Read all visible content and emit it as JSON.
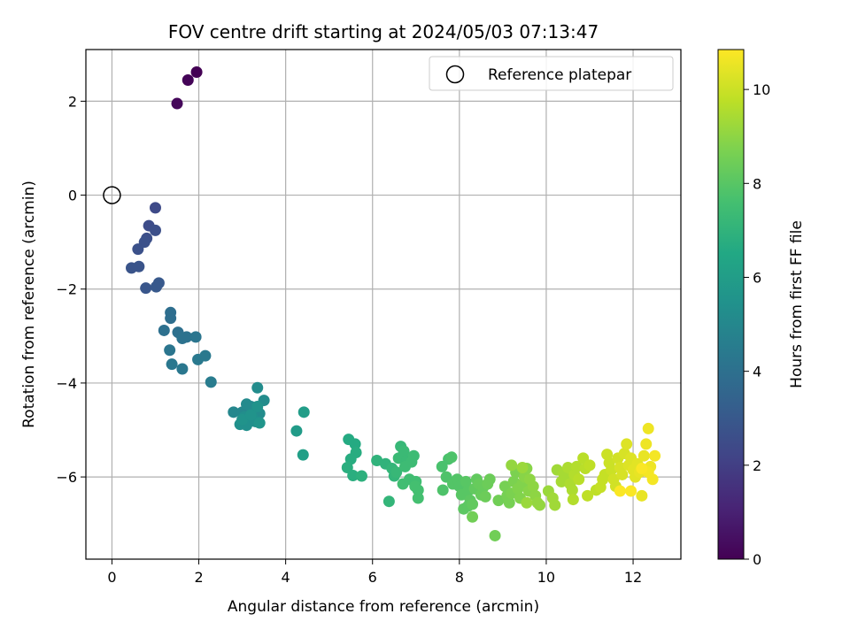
{
  "chart_data": {
    "type": "scatter",
    "title": "FOV centre drift starting at 2024/05/03 07:13:47",
    "xlabel": "Angular distance from reference (arcmin)",
    "ylabel": "Rotation from reference (arcmin)",
    "xlim": [
      -0.6,
      13.1
    ],
    "ylim": [
      -7.75,
      3.1
    ],
    "xticks": [
      0,
      2,
      4,
      6,
      8,
      10,
      12
    ],
    "yticks": [
      -6,
      -4,
      -2,
      0,
      2
    ],
    "grid": true,
    "legend": {
      "position": "top-right",
      "entries": [
        "Reference platepar"
      ]
    },
    "reference_point": {
      "x": 0,
      "y": 0
    },
    "colorbar": {
      "label": "Hours from first FF file",
      "colormap": "viridis",
      "range": [
        0,
        10.85
      ],
      "ticks": [
        0,
        2,
        4,
        6,
        8,
        10
      ]
    },
    "points": [
      [
        1.95,
        2.62,
        0.0
      ],
      [
        1.75,
        2.45,
        0.1
      ],
      [
        1.5,
        1.95,
        0.2
      ],
      [
        1.0,
        -0.27,
        2.4
      ],
      [
        0.85,
        -0.65,
        2.5
      ],
      [
        1.0,
        -0.75,
        2.6
      ],
      [
        0.8,
        -0.92,
        2.6
      ],
      [
        0.75,
        -1.0,
        2.7
      ],
      [
        0.6,
        -1.15,
        2.7
      ],
      [
        0.45,
        -1.55,
        2.8
      ],
      [
        0.62,
        -1.52,
        2.8
      ],
      [
        0.78,
        -1.98,
        2.9
      ],
      [
        1.02,
        -1.95,
        3.0
      ],
      [
        1.08,
        -1.87,
        3.0
      ],
      [
        1.35,
        -2.5,
        3.9
      ],
      [
        1.35,
        -2.62,
        3.9
      ],
      [
        1.2,
        -2.88,
        4.0
      ],
      [
        1.52,
        -2.92,
        4.0
      ],
      [
        1.72,
        -3.02,
        4.1
      ],
      [
        1.62,
        -3.05,
        4.1
      ],
      [
        1.93,
        -3.02,
        4.2
      ],
      [
        1.33,
        -3.3,
        4.2
      ],
      [
        1.38,
        -3.6,
        4.3
      ],
      [
        1.62,
        -3.7,
        4.3
      ],
      [
        1.98,
        -3.5,
        4.4
      ],
      [
        2.15,
        -3.42,
        4.4
      ],
      [
        2.28,
        -3.98,
        4.5
      ],
      [
        2.8,
        -4.62,
        5.0
      ],
      [
        3.0,
        -4.62,
        5.0
      ],
      [
        3.1,
        -4.45,
        5.1
      ],
      [
        3.2,
        -4.5,
        5.1
      ],
      [
        3.3,
        -4.6,
        5.1
      ],
      [
        3.4,
        -4.65,
        5.2
      ],
      [
        3.5,
        -4.37,
        5.2
      ],
      [
        3.35,
        -4.1,
        5.2
      ],
      [
        3.25,
        -4.75,
        5.3
      ],
      [
        3.15,
        -4.8,
        5.3
      ],
      [
        3.05,
        -4.72,
        5.3
      ],
      [
        2.95,
        -4.88,
        5.4
      ],
      [
        3.1,
        -4.9,
        5.4
      ],
      [
        3.3,
        -4.82,
        5.4
      ],
      [
        3.0,
        -4.78,
        5.5
      ],
      [
        3.2,
        -4.68,
        5.5
      ],
      [
        3.35,
        -4.5,
        5.5
      ],
      [
        3.4,
        -4.85,
        5.6
      ],
      [
        4.25,
        -5.02,
        5.9
      ],
      [
        4.42,
        -4.62,
        6.0
      ],
      [
        4.4,
        -5.53,
        6.1
      ],
      [
        5.45,
        -5.2,
        6.6
      ],
      [
        5.6,
        -5.3,
        6.6
      ],
      [
        5.62,
        -5.48,
        6.7
      ],
      [
        5.5,
        -5.62,
        6.7
      ],
      [
        5.42,
        -5.8,
        6.8
      ],
      [
        5.55,
        -5.97,
        6.8
      ],
      [
        5.75,
        -5.98,
        6.9
      ],
      [
        6.1,
        -5.65,
        7.0
      ],
      [
        6.3,
        -5.72,
        7.0
      ],
      [
        6.45,
        -5.82,
        7.1
      ],
      [
        6.5,
        -5.98,
        7.1
      ],
      [
        6.38,
        -6.52,
        7.1
      ],
      [
        6.55,
        -5.9,
        7.2
      ],
      [
        6.65,
        -5.35,
        7.2
      ],
      [
        6.6,
        -5.6,
        7.3
      ],
      [
        6.72,
        -5.45,
        7.3
      ],
      [
        6.8,
        -5.65,
        7.3
      ],
      [
        6.75,
        -5.78,
        7.4
      ],
      [
        6.9,
        -5.68,
        7.4
      ],
      [
        6.95,
        -5.55,
        7.4
      ],
      [
        6.7,
        -6.15,
        7.5
      ],
      [
        6.85,
        -6.05,
        7.5
      ],
      [
        7.0,
        -6.1,
        7.5
      ],
      [
        7.05,
        -6.28,
        7.6
      ],
      [
        7.05,
        -6.45,
        7.6
      ],
      [
        6.98,
        -6.2,
        7.6
      ],
      [
        7.6,
        -5.78,
        7.7
      ],
      [
        7.75,
        -5.62,
        7.7
      ],
      [
        7.82,
        -5.58,
        7.8
      ],
      [
        7.7,
        -6.0,
        7.8
      ],
      [
        7.62,
        -6.28,
        7.8
      ],
      [
        7.85,
        -6.15,
        7.9
      ],
      [
        7.95,
        -6.05,
        7.9
      ],
      [
        8.0,
        -6.2,
        7.9
      ],
      [
        8.05,
        -6.38,
        8.0
      ],
      [
        8.15,
        -6.1,
        8.0
      ],
      [
        8.2,
        -6.3,
        8.0
      ],
      [
        8.25,
        -6.5,
        8.1
      ],
      [
        8.1,
        -6.68,
        8.1
      ],
      [
        8.2,
        -6.62,
        8.1
      ],
      [
        8.3,
        -6.58,
        8.2
      ],
      [
        8.35,
        -6.25,
        8.2
      ],
      [
        8.4,
        -6.05,
        8.2
      ],
      [
        8.45,
        -6.15,
        8.3
      ],
      [
        8.5,
        -6.38,
        8.3
      ],
      [
        8.55,
        -6.22,
        8.3
      ],
      [
        8.6,
        -6.42,
        8.4
      ],
      [
        8.65,
        -6.15,
        8.4
      ],
      [
        8.7,
        -6.05,
        8.4
      ],
      [
        8.3,
        -6.85,
        8.5
      ],
      [
        8.82,
        -7.25,
        8.5
      ],
      [
        8.9,
        -6.5,
        8.5
      ],
      [
        9.05,
        -6.2,
        8.6
      ],
      [
        9.1,
        -6.4,
        8.6
      ],
      [
        9.15,
        -6.55,
        8.6
      ],
      [
        9.2,
        -6.35,
        8.7
      ],
      [
        9.25,
        -6.1,
        8.7
      ],
      [
        9.3,
        -5.9,
        8.7
      ],
      [
        9.35,
        -6.25,
        8.8
      ],
      [
        9.4,
        -6.45,
        8.8
      ],
      [
        9.45,
        -6.15,
        8.8
      ],
      [
        9.5,
        -6.0,
        8.9
      ],
      [
        9.55,
        -5.82,
        8.9
      ],
      [
        9.6,
        -6.3,
        8.9
      ],
      [
        9.62,
        -6.05,
        9.0
      ],
      [
        9.7,
        -6.2,
        9.0
      ],
      [
        9.75,
        -6.4,
        9.0
      ],
      [
        9.8,
        -6.55,
        9.1
      ],
      [
        9.85,
        -6.6,
        9.1
      ],
      [
        9.2,
        -5.75,
        9.1
      ],
      [
        9.45,
        -5.8,
        9.2
      ],
      [
        9.55,
        -6.55,
        9.2
      ],
      [
        10.05,
        -6.3,
        9.2
      ],
      [
        10.15,
        -6.45,
        9.3
      ],
      [
        10.2,
        -6.6,
        9.3
      ],
      [
        10.25,
        -5.85,
        9.3
      ],
      [
        10.35,
        -6.1,
        9.4
      ],
      [
        10.4,
        -5.92,
        9.4
      ],
      [
        10.45,
        -6.0,
        9.4
      ],
      [
        10.5,
        -5.8,
        9.5
      ],
      [
        10.55,
        -6.15,
        9.5
      ],
      [
        10.6,
        -6.28,
        9.5
      ],
      [
        10.65,
        -5.95,
        9.6
      ],
      [
        10.7,
        -5.78,
        9.6
      ],
      [
        10.62,
        -6.48,
        9.6
      ],
      [
        10.75,
        -6.05,
        9.7
      ],
      [
        10.85,
        -5.6,
        9.7
      ],
      [
        10.9,
        -5.82,
        9.7
      ],
      [
        11.0,
        -5.75,
        9.8
      ],
      [
        10.95,
        -6.4,
        9.8
      ],
      [
        11.15,
        -6.28,
        9.8
      ],
      [
        11.25,
        -6.22,
        9.9
      ],
      [
        11.3,
        -6.05,
        9.9
      ],
      [
        11.35,
        -5.95,
        9.9
      ],
      [
        11.4,
        -5.52,
        10.0
      ],
      [
        11.45,
        -5.7,
        10.0
      ],
      [
        11.5,
        -5.85,
        10.0
      ],
      [
        11.55,
        -6.05,
        10.1
      ],
      [
        11.6,
        -6.2,
        10.1
      ],
      [
        11.65,
        -5.6,
        10.1
      ],
      [
        11.7,
        -5.8,
        10.2
      ],
      [
        11.75,
        -5.95,
        10.2
      ],
      [
        11.8,
        -5.5,
        10.2
      ],
      [
        11.85,
        -5.3,
        10.3
      ],
      [
        11.9,
        -5.75,
        10.3
      ],
      [
        11.95,
        -5.6,
        10.3
      ],
      [
        12.0,
        -5.85,
        10.4
      ],
      [
        12.05,
        -6.0,
        10.4
      ],
      [
        12.1,
        -5.72,
        10.4
      ],
      [
        12.15,
        -5.9,
        10.5
      ],
      [
        12.2,
        -6.4,
        10.5
      ],
      [
        12.25,
        -5.55,
        10.5
      ],
      [
        12.3,
        -5.3,
        10.6
      ],
      [
        12.35,
        -4.97,
        10.6
      ],
      [
        12.4,
        -5.78,
        10.6
      ],
      [
        12.45,
        -6.05,
        10.7
      ],
      [
        12.35,
        -5.9,
        10.7
      ],
      [
        12.5,
        -5.55,
        10.7
      ],
      [
        12.2,
        -5.82,
        10.8
      ],
      [
        11.95,
        -6.3,
        10.8
      ],
      [
        11.7,
        -6.3,
        10.8
      ]
    ]
  }
}
